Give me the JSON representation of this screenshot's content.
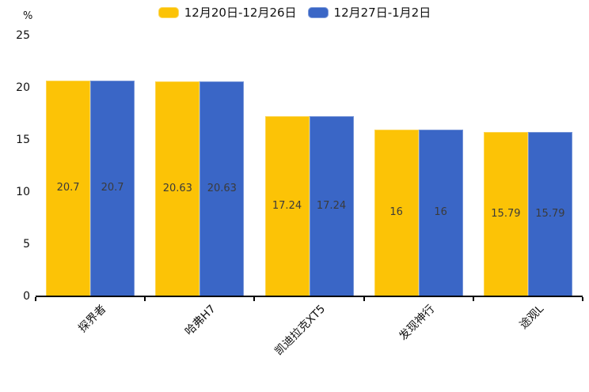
{
  "chart": {
    "unit_label": "%",
    "legend": [
      {
        "label": "12月20日-12月26日",
        "color": "#FCC306"
      },
      {
        "label": "12月27日-1月2日",
        "color": "#3A66C6"
      }
    ]
  },
  "chart_data": {
    "type": "bar",
    "title": "",
    "xlabel": "",
    "ylabel": "%",
    "categories": [
      "探界者",
      "哈弗H7",
      "凯迪拉克XT5",
      "发现神行",
      "途观L"
    ],
    "series": [
      {
        "name": "12月20日-12月26日",
        "color": "#FCC306",
        "values": [
          20.7,
          20.63,
          17.24,
          16,
          15.79
        ]
      },
      {
        "name": "12月27日-1月2日",
        "color": "#3A66C6",
        "values": [
          20.7,
          20.63,
          17.24,
          16,
          15.79
        ]
      }
    ],
    "value_labels": [
      "20.7",
      "20.63",
      "17.24",
      "16",
      "15.79"
    ],
    "ylim": [
      0,
      25
    ],
    "yticks": [
      0,
      5,
      10,
      15,
      20,
      25
    ],
    "grid": false,
    "legend_position": "top",
    "value_label_position": "inside-middle",
    "xtick_label_rotation": 45
  }
}
